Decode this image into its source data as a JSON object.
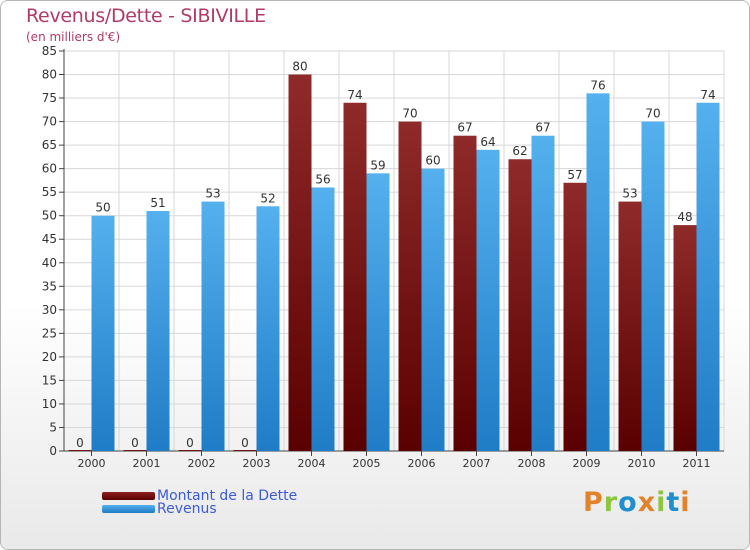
{
  "header": {
    "title": "Revenus/Dette - SIBIVILLE",
    "subtitle": "(en milliers d'€)"
  },
  "colors": {
    "dette": "#8b1f1f",
    "revenus": "#3d9ee6",
    "grid": "#d7d7d7",
    "axis_text": "#333333",
    "title": "#b03a6a",
    "legend_text": "#3b5bd6"
  },
  "legend": {
    "items": [
      {
        "label": "Montant de la Dette",
        "color": "#8b1f1f"
      },
      {
        "label": "Revenus",
        "color": "#3d9ee6"
      }
    ]
  },
  "logo": {
    "text": "Proxiti",
    "letter_colors": [
      "#e2822b",
      "#8cc63f",
      "#1f8fcf",
      "#e2822b",
      "#8cc63f",
      "#1f8fcf",
      "#e2822b"
    ]
  },
  "chart_data": {
    "type": "bar",
    "title": "Revenus/Dette - SIBIVILLE",
    "subtitle": "(en milliers d'€)",
    "categories": [
      "2000",
      "2001",
      "2002",
      "2003",
      "2004",
      "2005",
      "2006",
      "2007",
      "2008",
      "2009",
      "2010",
      "2011"
    ],
    "series": [
      {
        "name": "Montant de la Dette",
        "values": [
          0,
          0,
          0,
          0,
          80,
          74,
          70,
          67,
          62,
          57,
          53,
          48
        ]
      },
      {
        "name": "Revenus",
        "values": [
          50,
          51,
          53,
          52,
          56,
          59,
          60,
          64,
          67,
          76,
          70,
          74
        ]
      }
    ],
    "ylim": [
      0,
      85
    ],
    "ytick_step": 5,
    "grid": true,
    "legend_position": "bottom-left"
  }
}
